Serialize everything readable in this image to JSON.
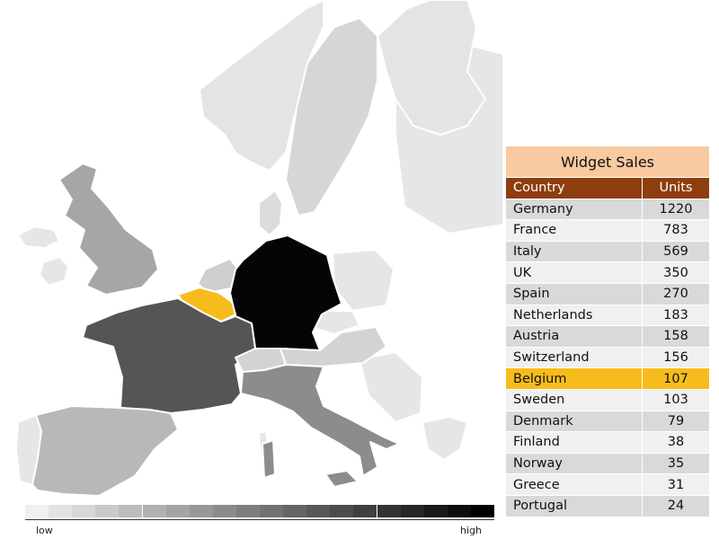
{
  "table": {
    "title": "Widget Sales",
    "headers": {
      "country": "Country",
      "units": "Units"
    },
    "rows": [
      {
        "country": "Germany",
        "units": "1220"
      },
      {
        "country": "France",
        "units": "783"
      },
      {
        "country": "Italy",
        "units": "569"
      },
      {
        "country": "UK",
        "units": "350"
      },
      {
        "country": "Spain",
        "units": "270"
      },
      {
        "country": "Netherlands",
        "units": "183"
      },
      {
        "country": "Austria",
        "units": "158"
      },
      {
        "country": "Switzerland",
        "units": "156"
      },
      {
        "country": "Belgium",
        "units": "107"
      },
      {
        "country": "Sweden",
        "units": "103"
      },
      {
        "country": "Denmark",
        "units": "79"
      },
      {
        "country": "Finland",
        "units": "38"
      },
      {
        "country": "Norway",
        "units": "35"
      },
      {
        "country": "Greece",
        "units": "31"
      },
      {
        "country": "Portugal",
        "units": "24"
      }
    ],
    "highlighted_country": "Belgium"
  },
  "map": {
    "highlight_color": "#f7bc1c",
    "country_colors": {
      "germany": "#050505",
      "france": "#555555",
      "italy": "#8c8c8c",
      "uk": "#a6a6a6",
      "spain": "#b8b8b8",
      "netherlands": "#cfcfcf",
      "austria": "#d3d3d3",
      "switzerland": "#d3d3d3",
      "belgium": "#f7bc1c",
      "sweden": "#d6d6d6",
      "denmark": "#dcdcdc",
      "finland": "#e4e4e4",
      "norway": "#e4e4e4",
      "greece": "#e6e6e6",
      "portugal": "#e6e6e6",
      "other": "#e6e6e6"
    }
  },
  "scale": {
    "low_label": "low",
    "high_label": "high",
    "steps": 20
  }
}
